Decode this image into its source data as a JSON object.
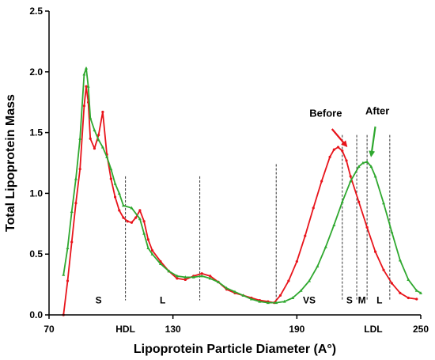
{
  "chart_data": {
    "type": "line",
    "title": "",
    "xlabel": "Lipoprotein Particle Diameter (A°)",
    "ylabel": "Total Lipoprotein Mass",
    "xlim": [
      70,
      250
    ],
    "ylim": [
      0,
      2.5
    ],
    "xticks": [
      70,
      130,
      190,
      250
    ],
    "yticks": [
      0.0,
      0.5,
      1.0,
      1.5,
      2.0,
      2.5
    ],
    "ytick_labels": [
      "0.0",
      "0.5",
      "1.0",
      "1.5",
      "2.0",
      "2.5"
    ],
    "grid": false,
    "legend": "none",
    "series": [
      {
        "color": "#e8141b",
        "x": [
          77,
          79,
          81,
          83,
          85,
          87,
          88,
          89,
          90,
          92,
          94,
          96,
          98,
          100,
          102,
          104,
          106,
          108,
          110,
          112,
          114,
          116,
          118,
          120,
          124,
          128,
          132,
          136,
          140,
          144,
          148,
          152,
          156,
          160,
          164,
          168,
          172,
          176,
          179,
          182,
          186,
          190,
          194,
          198,
          202,
          206,
          208,
          210,
          212,
          214,
          216,
          220,
          224,
          228,
          232,
          236,
          240,
          244,
          248
        ],
        "y": [
          0.0,
          0.28,
          0.6,
          0.92,
          1.2,
          1.72,
          1.88,
          1.75,
          1.45,
          1.37,
          1.48,
          1.67,
          1.32,
          1.12,
          0.97,
          0.86,
          0.8,
          0.77,
          0.76,
          0.8,
          0.86,
          0.77,
          0.62,
          0.53,
          0.44,
          0.36,
          0.3,
          0.29,
          0.32,
          0.34,
          0.32,
          0.27,
          0.21,
          0.18,
          0.16,
          0.14,
          0.12,
          0.11,
          0.1,
          0.16,
          0.28,
          0.44,
          0.65,
          0.88,
          1.1,
          1.3,
          1.36,
          1.38,
          1.35,
          1.27,
          1.14,
          0.93,
          0.72,
          0.52,
          0.37,
          0.26,
          0.18,
          0.14,
          0.13
        ]
      },
      {
        "color": "#2fa82f",
        "x": [
          77,
          79,
          81,
          83,
          85,
          87,
          88,
          89,
          90,
          92,
          94,
          96,
          98,
          100,
          102,
          104,
          106,
          110,
          114,
          116,
          118,
          120,
          124,
          128,
          132,
          136,
          140,
          144,
          148,
          152,
          156,
          160,
          164,
          168,
          172,
          176,
          180,
          184,
          188,
          192,
          196,
          200,
          204,
          208,
          212,
          216,
          220,
          222,
          224,
          226,
          228,
          232,
          236,
          240,
          244,
          248,
          250
        ],
        "y": [
          0.33,
          0.55,
          0.85,
          1.12,
          1.45,
          1.98,
          2.03,
          1.88,
          1.62,
          1.52,
          1.44,
          1.38,
          1.3,
          1.2,
          1.08,
          1.0,
          0.9,
          0.88,
          0.79,
          0.67,
          0.55,
          0.5,
          0.42,
          0.36,
          0.32,
          0.31,
          0.31,
          0.32,
          0.3,
          0.27,
          0.22,
          0.19,
          0.16,
          0.13,
          0.11,
          0.1,
          0.1,
          0.11,
          0.14,
          0.2,
          0.28,
          0.4,
          0.56,
          0.74,
          0.93,
          1.1,
          1.22,
          1.25,
          1.26,
          1.22,
          1.14,
          0.92,
          0.68,
          0.45,
          0.29,
          0.2,
          0.18
        ]
      }
    ],
    "dividers": [
      107,
      143,
      180,
      212,
      219,
      224,
      235
    ],
    "region_labels": [
      {
        "text": "S",
        "x": 94,
        "y": 0.12
      },
      {
        "text": "L",
        "x": 125,
        "y": 0.12
      },
      {
        "text": "VS",
        "x": 196,
        "y": 0.12
      },
      {
        "text": "S",
        "x": 215.5,
        "y": 0.12
      },
      {
        "text": "M",
        "x": 221.5,
        "y": 0.12
      },
      {
        "text": "L",
        "x": 230,
        "y": 0.12
      }
    ],
    "class_labels": [
      {
        "text": "HDL",
        "x": 107
      },
      {
        "text": "LDL",
        "x": 227
      }
    ],
    "annotations": [
      {
        "text": "Before",
        "text_x": 204,
        "text_y": 1.63,
        "arrow_from": [
          207,
          1.53
        ],
        "arrow_to": [
          214,
          1.39
        ],
        "color": "#e8141b"
      },
      {
        "text": "After",
        "text_x": 229,
        "text_y": 1.65,
        "arrow_from": [
          228,
          1.55
        ],
        "arrow_to": [
          226,
          1.31
        ],
        "color": "#2fa82f"
      }
    ]
  }
}
